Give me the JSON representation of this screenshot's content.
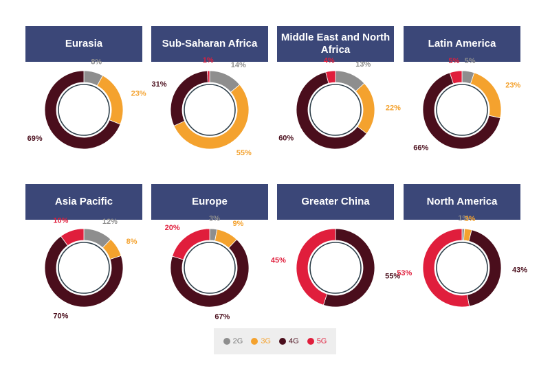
{
  "colors": {
    "2G": "#8e8e8e",
    "3G": "#f4a22e",
    "4G": "#4a0e1c",
    "5G": "#e01e3c"
  },
  "legend": [
    {
      "label": "2G",
      "color": "#8e8e8e"
    },
    {
      "label": "3G",
      "color": "#f4a22e"
    },
    {
      "label": "4G",
      "color": "#4a0e1c"
    },
    {
      "label": "5G",
      "color": "#e01e3c"
    }
  ],
  "chart_data": [
    {
      "type": "pie",
      "title": "Eurasia",
      "categories": [
        "2G",
        "3G",
        "4G",
        "5G"
      ],
      "values": [
        8,
        23,
        69,
        0
      ],
      "labels": [
        "8%",
        "23%",
        "69%",
        ""
      ]
    },
    {
      "type": "pie",
      "title": "Sub-Saharan Africa",
      "categories": [
        "2G",
        "3G",
        "4G",
        "5G"
      ],
      "values": [
        14,
        55,
        31,
        1
      ],
      "labels": [
        "14%",
        "55%",
        "31%",
        "1%"
      ]
    },
    {
      "type": "pie",
      "title": "Middle East and North Africa",
      "categories": [
        "2G",
        "3G",
        "4G",
        "5G"
      ],
      "values": [
        13,
        22,
        60,
        4
      ],
      "labels": [
        "13%",
        "22%",
        "60%",
        "4%"
      ]
    },
    {
      "type": "pie",
      "title": "Latin America",
      "categories": [
        "2G",
        "3G",
        "4G",
        "5G"
      ],
      "values": [
        5,
        23,
        66,
        5
      ],
      "labels": [
        "5%",
        "23%",
        "66%",
        "5%"
      ]
    },
    {
      "type": "pie",
      "title": "Asia Pacific",
      "categories": [
        "2G",
        "3G",
        "4G",
        "5G"
      ],
      "values": [
        12,
        8,
        70,
        10
      ],
      "labels": [
        "12%",
        "8%",
        "70%",
        "10%"
      ]
    },
    {
      "type": "pie",
      "title": "Europe",
      "categories": [
        "2G",
        "3G",
        "4G",
        "5G"
      ],
      "values": [
        3,
        9,
        67,
        20
      ],
      "labels": [
        "3%",
        "9%",
        "67%",
        "20%"
      ]
    },
    {
      "type": "pie",
      "title": "Greater China",
      "categories": [
        "2G",
        "3G",
        "4G",
        "5G"
      ],
      "values": [
        0,
        0,
        55,
        45
      ],
      "labels": [
        "",
        "",
        "55%",
        "45%"
      ]
    },
    {
      "type": "pie",
      "title": "North America",
      "categories": [
        "2G",
        "3G",
        "4G",
        "5G"
      ],
      "values": [
        1,
        3,
        43,
        53
      ],
      "labels": [
        "1%",
        "3%",
        "43%",
        "53%"
      ]
    }
  ]
}
